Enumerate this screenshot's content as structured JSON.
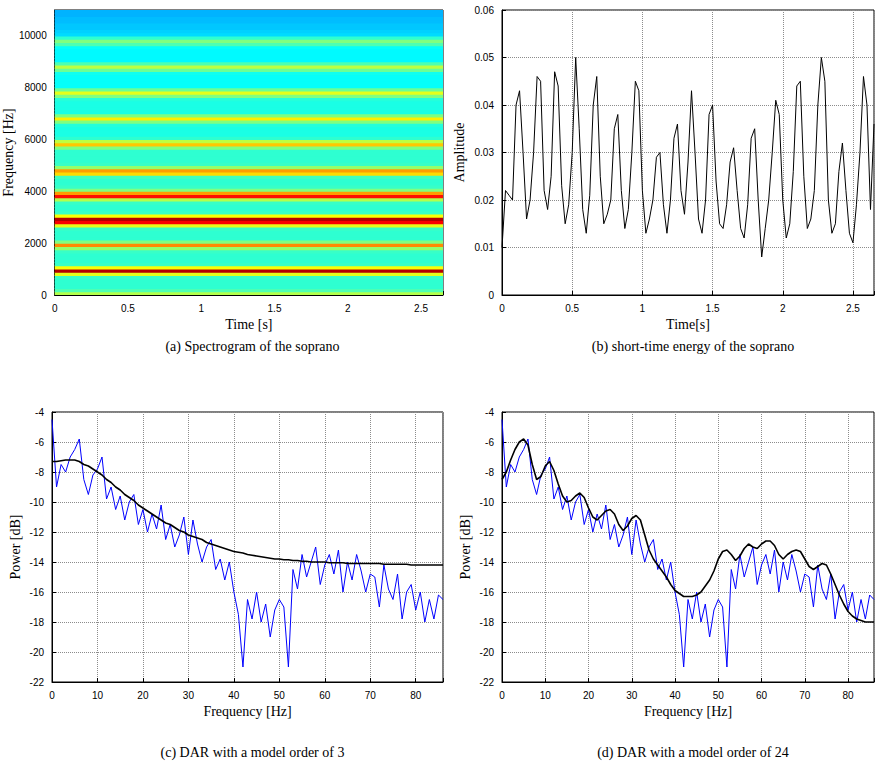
{
  "chart_data": [
    {
      "type": "heatmap",
      "title": "(a) Spectrogram of the soprano",
      "xlabel": "Time [s]",
      "ylabel": "Frequency [Hz]",
      "x_bins": [
        0,
        2.65
      ],
      "y_bins": [
        0,
        125,
        250,
        375,
        500,
        625,
        750,
        875,
        1000,
        1125,
        1250,
        1375,
        1500,
        1625,
        1750,
        1875,
        2000,
        2125,
        2250,
        2375,
        2500,
        2625,
        2750,
        2875,
        3000,
        3125,
        3250,
        3375,
        3500,
        3625,
        3750,
        3875,
        4000,
        4125,
        4250,
        4375,
        4500,
        4625,
        4750,
        4875,
        5000,
        5125,
        5250,
        5375,
        5500,
        5625,
        5750,
        5875,
        6000,
        6125,
        6250,
        6375,
        6500,
        6625,
        6750,
        6875,
        7000,
        7125,
        7250,
        7375,
        7500,
        7625,
        7750,
        7875,
        8000,
        8125,
        8250,
        8375,
        8500,
        8625,
        8750,
        8875,
        9000,
        9125,
        9250,
        9375,
        9500,
        9625,
        9750,
        9875,
        10000,
        10125,
        10250,
        10375,
        10500,
        10625,
        10750,
        10875,
        11000
      ],
      "cells": [
        [
          0.55,
          0.45,
          0.42,
          0.42,
          0.42,
          0.43,
          0.6,
          0.95,
          0.62,
          0.43,
          0.42,
          0.42,
          0.42,
          0.43,
          0.52,
          0.74,
          0.5,
          0.42,
          0.42,
          0.42,
          0.43,
          0.6,
          0.88,
          0.95,
          0.62,
          0.43,
          0.42,
          0.42,
          0.43,
          0.55,
          0.86,
          0.72,
          0.5,
          0.43,
          0.42,
          0.42,
          0.44,
          0.66,
          0.72,
          0.52,
          0.43,
          0.42,
          0.42,
          0.42,
          0.42,
          0.5,
          0.68,
          0.56,
          0.42,
          0.4,
          0.4,
          0.4,
          0.41,
          0.5,
          0.64,
          0.5,
          0.4,
          0.4,
          0.4,
          0.4,
          0.41,
          0.5,
          0.6,
          0.48,
          0.38,
          0.38,
          0.38,
          0.38,
          0.39,
          0.48,
          0.56,
          0.45,
          0.37,
          0.37,
          0.37,
          0.37,
          0.38,
          0.45,
          0.5,
          0.42,
          0.34,
          0.33,
          0.32,
          0.32,
          0.31,
          0.31,
          0.3,
          0.3
        ]
      ],
      "clim": [
        0,
        1
      ],
      "xlim": [
        0,
        2.65
      ],
      "ylim": [
        0,
        11000
      ],
      "xticks": [
        0,
        0.5,
        1,
        1.5,
        2,
        2.5
      ],
      "yticks": [
        0,
        2000,
        4000,
        6000,
        8000,
        10000
      ],
      "grid": false
    },
    {
      "type": "line",
      "title": "(b) short-time energy of the soprano",
      "xlabel": "Time[s]",
      "ylabel": "Amplitude",
      "x": [
        0,
        0.025,
        0.05,
        0.075,
        0.1,
        0.125,
        0.15,
        0.175,
        0.2,
        0.225,
        0.25,
        0.275,
        0.3,
        0.325,
        0.35,
        0.375,
        0.4,
        0.425,
        0.45,
        0.475,
        0.5,
        0.525,
        0.55,
        0.575,
        0.6,
        0.625,
        0.65,
        0.675,
        0.7,
        0.725,
        0.75,
        0.775,
        0.8,
        0.825,
        0.85,
        0.875,
        0.9,
        0.925,
        0.95,
        0.975,
        1,
        1.025,
        1.05,
        1.075,
        1.1,
        1.125,
        1.15,
        1.175,
        1.2,
        1.225,
        1.25,
        1.275,
        1.3,
        1.325,
        1.35,
        1.375,
        1.4,
        1.425,
        1.45,
        1.475,
        1.5,
        1.525,
        1.55,
        1.575,
        1.6,
        1.625,
        1.65,
        1.675,
        1.7,
        1.725,
        1.75,
        1.775,
        1.8,
        1.825,
        1.85,
        1.875,
        1.9,
        1.925,
        1.95,
        1.975,
        2,
        2.025,
        2.05,
        2.075,
        2.1,
        2.125,
        2.15,
        2.175,
        2.2,
        2.225,
        2.25,
        2.275,
        2.3,
        2.325,
        2.35,
        2.375,
        2.4,
        2.425,
        2.45,
        2.475,
        2.5,
        2.525,
        2.55,
        2.575,
        2.6,
        2.625,
        2.65
      ],
      "series": [
        {
          "color": "#000000",
          "values": [
            0.01,
            0.022,
            0.021,
            0.02,
            0.04,
            0.043,
            0.03,
            0.016,
            0.02,
            0.03,
            0.046,
            0.045,
            0.022,
            0.018,
            0.025,
            0.047,
            0.044,
            0.023,
            0.015,
            0.019,
            0.03,
            0.05,
            0.035,
            0.018,
            0.013,
            0.021,
            0.04,
            0.046,
            0.025,
            0.015,
            0.017,
            0.02,
            0.035,
            0.038,
            0.022,
            0.014,
            0.018,
            0.03,
            0.045,
            0.043,
            0.022,
            0.013,
            0.016,
            0.02,
            0.029,
            0.03,
            0.019,
            0.013,
            0.02,
            0.033,
            0.036,
            0.022,
            0.017,
            0.028,
            0.043,
            0.03,
            0.016,
            0.013,
            0.02,
            0.038,
            0.04,
            0.024,
            0.015,
            0.014,
            0.019,
            0.028,
            0.031,
            0.022,
            0.014,
            0.012,
            0.019,
            0.033,
            0.035,
            0.02,
            0.008,
            0.014,
            0.02,
            0.03,
            0.041,
            0.038,
            0.02,
            0.012,
            0.015,
            0.026,
            0.044,
            0.045,
            0.025,
            0.014,
            0.016,
            0.022,
            0.04,
            0.05,
            0.045,
            0.02,
            0.013,
            0.015,
            0.026,
            0.032,
            0.022,
            0.013,
            0.011,
            0.019,
            0.03,
            0.046,
            0.04,
            0.018,
            0.036
          ]
        }
      ],
      "xlim": [
        0,
        2.65
      ],
      "ylim": [
        0,
        0.06
      ],
      "xticks": [
        0,
        0.5,
        1,
        1.5,
        2,
        2.5
      ],
      "yticks": [
        0,
        0.01,
        0.02,
        0.03,
        0.04,
        0.05,
        0.06
      ],
      "grid": true
    },
    {
      "type": "line",
      "title": "(c) DAR with a model order of 3",
      "xlabel": "Frequency [Hz]",
      "ylabel": "Power [dB]",
      "x": [
        0,
        1,
        2,
        3,
        4,
        5,
        6,
        7,
        8,
        9,
        10,
        11,
        12,
        13,
        14,
        15,
        16,
        17,
        18,
        19,
        20,
        21,
        22,
        23,
        24,
        25,
        26,
        27,
        28,
        29,
        30,
        31,
        32,
        33,
        34,
        35,
        36,
        37,
        38,
        39,
        40,
        41,
        42,
        43,
        44,
        45,
        46,
        47,
        48,
        49,
        50,
        51,
        52,
        53,
        54,
        55,
        56,
        57,
        58,
        59,
        60,
        61,
        62,
        63,
        64,
        65,
        66,
        67,
        68,
        69,
        70,
        71,
        72,
        73,
        74,
        75,
        76,
        77,
        78,
        79,
        80,
        81,
        82,
        83,
        84,
        85,
        86
      ],
      "series": [
        {
          "color": "#0000ff",
          "values": [
            -4.5,
            -9.0,
            -7.5,
            -8.0,
            -7.0,
            -6.5,
            -5.8,
            -8.5,
            -9.5,
            -8.2,
            -7.8,
            -7.0,
            -9.8,
            -9.0,
            -10.5,
            -9.6,
            -11.2,
            -10.0,
            -9.5,
            -11.5,
            -10.5,
            -12.0,
            -10.8,
            -11.8,
            -10.2,
            -12.5,
            -11.5,
            -13.0,
            -12.2,
            -11.0,
            -13.5,
            -11.2,
            -12.8,
            -14.0,
            -13.0,
            -12.5,
            -14.5,
            -13.8,
            -15.2,
            -14.0,
            -16.0,
            -17.5,
            -21.0,
            -16.5,
            -17.8,
            -16.0,
            -18.0,
            -16.8,
            -19.0,
            -17.2,
            -16.5,
            -17.0,
            -21.0,
            -14.5,
            -15.8,
            -13.5,
            -15.0,
            -14.0,
            -13.0,
            -15.5,
            -14.2,
            -13.5,
            -14.8,
            -13.2,
            -16.0,
            -14.0,
            -15.2,
            -13.5,
            -14.6,
            -16.0,
            -14.8,
            -15.0,
            -17.0,
            -14.2,
            -15.8,
            -16.5,
            -14.8,
            -17.8,
            -16.0,
            -15.5,
            -17.2,
            -16.0,
            -18.0,
            -16.5,
            -17.8,
            -16.2,
            -16.5
          ]
        },
        {
          "color": "#000000",
          "values": [
            -7.3,
            -7.3,
            -7.25,
            -7.2,
            -7.2,
            -7.2,
            -7.3,
            -7.5,
            -7.6,
            -7.8,
            -8.0,
            -8.2,
            -8.5,
            -8.7,
            -9.0,
            -9.2,
            -9.5,
            -9.7,
            -9.9,
            -10.2,
            -10.4,
            -10.6,
            -10.8,
            -11.0,
            -11.2,
            -11.4,
            -11.5,
            -11.7,
            -11.9,
            -12.0,
            -12.2,
            -12.3,
            -12.4,
            -12.5,
            -12.7,
            -12.8,
            -12.9,
            -13.0,
            -13.1,
            -13.2,
            -13.3,
            -13.35,
            -13.4,
            -13.5,
            -13.55,
            -13.6,
            -13.65,
            -13.7,
            -13.75,
            -13.8,
            -13.8,
            -13.85,
            -13.85,
            -13.9,
            -13.9,
            -13.95,
            -13.95,
            -14.0,
            -14.0,
            -14.0,
            -14.0,
            -14.05,
            -14.05,
            -14.05,
            -14.05,
            -14.1,
            -14.1,
            -14.1,
            -14.1,
            -14.1,
            -14.1,
            -14.1,
            -14.1,
            -14.15,
            -14.15,
            -14.15,
            -14.15,
            -14.15,
            -14.15,
            -14.2,
            -14.2,
            -14.2,
            -14.2,
            -14.2,
            -14.2,
            -14.2,
            -14.2
          ]
        }
      ],
      "xlim": [
        0,
        86
      ],
      "ylim": [
        -22,
        -4
      ],
      "xticks": [
        0,
        10,
        20,
        30,
        40,
        50,
        60,
        70,
        80
      ],
      "yticks": [
        -22,
        -20,
        -18,
        -16,
        -14,
        -12,
        -10,
        -8,
        -6,
        -4
      ],
      "grid": true
    },
    {
      "type": "line",
      "title": "(d) DAR with a model order of 24",
      "xlabel": "Frequency [Hz]",
      "ylabel": "Power [dB]",
      "x": [
        0,
        1,
        2,
        3,
        4,
        5,
        6,
        7,
        8,
        9,
        10,
        11,
        12,
        13,
        14,
        15,
        16,
        17,
        18,
        19,
        20,
        21,
        22,
        23,
        24,
        25,
        26,
        27,
        28,
        29,
        30,
        31,
        32,
        33,
        34,
        35,
        36,
        37,
        38,
        39,
        40,
        41,
        42,
        43,
        44,
        45,
        46,
        47,
        48,
        49,
        50,
        51,
        52,
        53,
        54,
        55,
        56,
        57,
        58,
        59,
        60,
        61,
        62,
        63,
        64,
        65,
        66,
        67,
        68,
        69,
        70,
        71,
        72,
        73,
        74,
        75,
        76,
        77,
        78,
        79,
        80,
        81,
        82,
        83,
        84,
        85,
        86
      ],
      "series": [
        {
          "color": "#0000ff",
          "values": [
            -4.5,
            -9.0,
            -7.5,
            -8.0,
            -7.0,
            -6.5,
            -5.8,
            -8.5,
            -9.5,
            -8.2,
            -7.8,
            -7.0,
            -9.8,
            -9.0,
            -10.5,
            -9.6,
            -11.2,
            -10.0,
            -9.5,
            -11.5,
            -10.5,
            -12.0,
            -10.8,
            -11.8,
            -10.2,
            -12.5,
            -11.5,
            -13.0,
            -12.2,
            -11.0,
            -13.5,
            -11.2,
            -12.8,
            -14.0,
            -13.0,
            -12.5,
            -14.5,
            -13.8,
            -15.2,
            -14.0,
            -16.0,
            -17.5,
            -21.0,
            -16.5,
            -17.8,
            -16.0,
            -18.0,
            -16.8,
            -19.0,
            -17.2,
            -16.5,
            -17.0,
            -21.0,
            -14.5,
            -15.8,
            -13.5,
            -15.0,
            -14.0,
            -13.0,
            -15.5,
            -14.2,
            -13.5,
            -14.8,
            -13.2,
            -16.0,
            -14.0,
            -15.2,
            -13.5,
            -14.6,
            -16.0,
            -14.8,
            -15.0,
            -17.0,
            -14.2,
            -15.8,
            -16.5,
            -14.8,
            -17.8,
            -16.0,
            -15.5,
            -17.2,
            -16.0,
            -18.0,
            -16.5,
            -17.8,
            -16.2,
            -16.5
          ]
        },
        {
          "color": "#000000",
          "values": [
            -8.5,
            -8.0,
            -7.2,
            -6.5,
            -6.0,
            -5.8,
            -6.2,
            -7.5,
            -8.5,
            -8.3,
            -7.6,
            -7.3,
            -7.9,
            -8.8,
            -9.6,
            -10.0,
            -9.9,
            -9.6,
            -9.4,
            -9.7,
            -10.4,
            -11.0,
            -11.2,
            -10.9,
            -10.6,
            -10.5,
            -10.8,
            -11.5,
            -11.9,
            -11.6,
            -11.1,
            -10.9,
            -11.2,
            -12.2,
            -13.2,
            -13.8,
            -14.2,
            -14.6,
            -15.0,
            -15.5,
            -15.9,
            -16.1,
            -16.3,
            -16.3,
            -16.3,
            -16.2,
            -16.0,
            -15.6,
            -15.2,
            -14.6,
            -13.8,
            -13.3,
            -13.2,
            -13.5,
            -13.9,
            -13.6,
            -13.1,
            -12.8,
            -13.0,
            -13.1,
            -12.8,
            -12.6,
            -12.6,
            -12.9,
            -13.5,
            -13.8,
            -13.5,
            -13.3,
            -13.2,
            -13.3,
            -13.8,
            -14.3,
            -14.5,
            -14.3,
            -14.1,
            -14.2,
            -14.8,
            -15.5,
            -16.2,
            -16.8,
            -17.3,
            -17.6,
            -17.8,
            -17.9,
            -18.0,
            -18.0,
            -18.0
          ]
        }
      ],
      "xlim": [
        0,
        86
      ],
      "ylim": [
        -22,
        -4
      ],
      "xticks": [
        0,
        10,
        20,
        30,
        40,
        50,
        60,
        70,
        80
      ],
      "yticks": [
        -22,
        -20,
        -18,
        -16,
        -14,
        -12,
        -10,
        -8,
        -6,
        -4
      ],
      "grid": true
    }
  ]
}
